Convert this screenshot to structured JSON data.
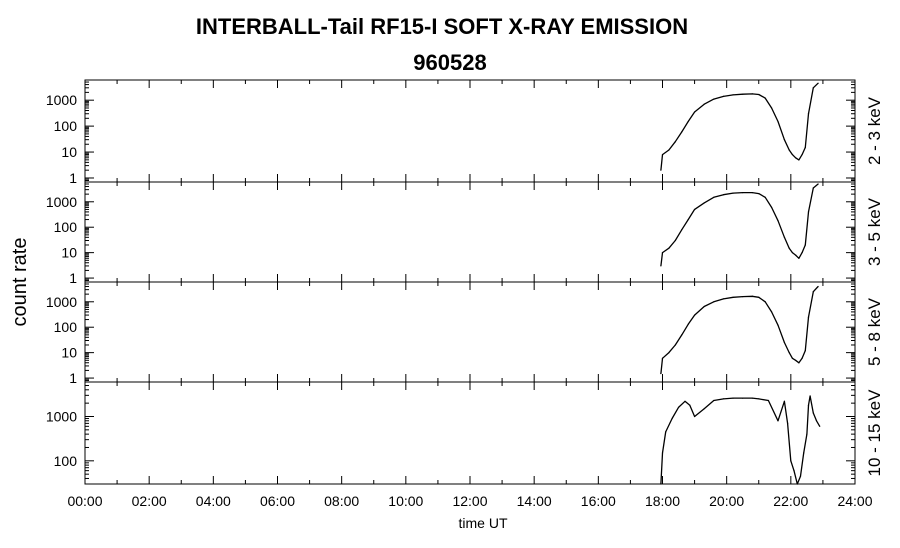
{
  "title_line1": "INTERBALL-Tail RF15-I SOFT X-RAY EMISSION",
  "title_line2": "960528",
  "chart_data": {
    "type": "line",
    "xlabel": "time UT",
    "ylabel": "count rate",
    "xlim": [
      0,
      24
    ],
    "x_ticks": [
      "00:00",
      "02:00",
      "04:00",
      "06:00",
      "08:00",
      "10:00",
      "12:00",
      "14:00",
      "16:00",
      "18:00",
      "20:00",
      "22:00",
      "24:00"
    ],
    "y_scale": "log",
    "panels": [
      {
        "band": "2 - 3 keV",
        "ylim": [
          0.7,
          6000
        ],
        "ytick_labels": [
          "1",
          "10",
          "100",
          "1000"
        ],
        "ytick_values": [
          1,
          10,
          100,
          1000
        ],
        "x": [
          17.95,
          18.0,
          18.2,
          18.4,
          18.6,
          18.8,
          19.0,
          19.3,
          19.6,
          19.9,
          20.2,
          20.5,
          20.8,
          21.0,
          21.2,
          21.4,
          21.6,
          21.8,
          21.95,
          22.05,
          22.15,
          22.25,
          22.35,
          22.45,
          22.55,
          22.7,
          22.85
        ],
        "y": [
          2,
          8,
          12,
          25,
          60,
          150,
          350,
          700,
          1100,
          1400,
          1600,
          1700,
          1750,
          1650,
          1200,
          500,
          150,
          30,
          12,
          8,
          6,
          5,
          8,
          15,
          300,
          3000,
          4500
        ]
      },
      {
        "band": "3 - 5 keV",
        "ylim": [
          0.7,
          6000
        ],
        "ytick_labels": [
          "1",
          "10",
          "100",
          "1000"
        ],
        "ytick_values": [
          1,
          10,
          100,
          1000
        ],
        "x": [
          17.95,
          18.0,
          18.2,
          18.4,
          18.6,
          18.8,
          19.0,
          19.3,
          19.6,
          19.9,
          20.2,
          20.5,
          20.8,
          21.0,
          21.2,
          21.4,
          21.6,
          21.8,
          21.95,
          22.05,
          22.15,
          22.25,
          22.35,
          22.45,
          22.55,
          22.7,
          22.85
        ],
        "y": [
          3,
          10,
          15,
          30,
          80,
          200,
          500,
          900,
          1500,
          1900,
          2200,
          2300,
          2300,
          2100,
          1500,
          600,
          180,
          40,
          15,
          10,
          8,
          6,
          10,
          20,
          400,
          3500,
          5000
        ]
      },
      {
        "band": "5 - 8 keV",
        "ylim": [
          0.7,
          6000
        ],
        "ytick_labels": [
          "1",
          "10",
          "100",
          "1000"
        ],
        "ytick_values": [
          1,
          10,
          100,
          1000
        ],
        "x": [
          17.95,
          18.0,
          18.2,
          18.4,
          18.6,
          18.8,
          19.0,
          19.3,
          19.6,
          19.9,
          20.2,
          20.5,
          20.8,
          21.0,
          21.2,
          21.4,
          21.6,
          21.8,
          21.95,
          22.05,
          22.15,
          22.25,
          22.35,
          22.45,
          22.55,
          22.7,
          22.85
        ],
        "y": [
          1.5,
          6,
          10,
          20,
          50,
          130,
          300,
          650,
          1000,
          1300,
          1500,
          1600,
          1650,
          1500,
          1000,
          400,
          120,
          25,
          10,
          6,
          5,
          4,
          6,
          12,
          250,
          2500,
          4000
        ]
      },
      {
        "band": "10 - 15 keV",
        "ylim": [
          30,
          6000
        ],
        "ytick_labels": [
          "100",
          "1000"
        ],
        "ytick_values": [
          100,
          1000
        ],
        "x": [
          17.95,
          18.0,
          18.1,
          18.3,
          18.5,
          18.7,
          18.85,
          19.0,
          19.3,
          19.6,
          19.9,
          20.2,
          20.5,
          20.8,
          21.0,
          21.3,
          21.6,
          21.8,
          21.9,
          22.0,
          22.1,
          22.2,
          22.3,
          22.4,
          22.5,
          22.55,
          22.6,
          22.7,
          22.8,
          22.9
        ],
        "y": [
          25,
          150,
          450,
          900,
          1600,
          2200,
          1800,
          1000,
          1500,
          2300,
          2500,
          2600,
          2600,
          2600,
          2500,
          2300,
          800,
          2200,
          700,
          100,
          60,
          30,
          45,
          150,
          400,
          1800,
          2900,
          1200,
          800,
          600
        ]
      }
    ]
  }
}
